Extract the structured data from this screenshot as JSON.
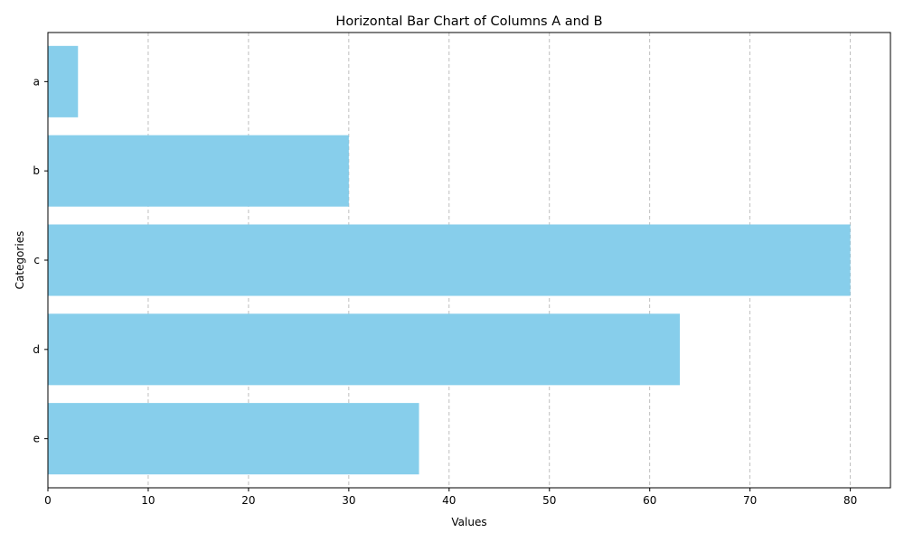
{
  "chart_data": {
    "type": "bar",
    "orientation": "horizontal",
    "title": "Horizontal Bar Chart of Columns A and B",
    "xlabel": "Values",
    "ylabel": "Categories",
    "categories": [
      "a",
      "b",
      "c",
      "d",
      "e"
    ],
    "values": [
      3,
      30,
      80,
      63,
      37
    ],
    "xlim": [
      0,
      84
    ],
    "xticks": [
      0,
      10,
      20,
      30,
      40,
      50,
      60,
      70,
      80
    ],
    "grid": "x-dashed",
    "bar_color": "#87ceeb",
    "grid_color": "#b0b0b0"
  }
}
